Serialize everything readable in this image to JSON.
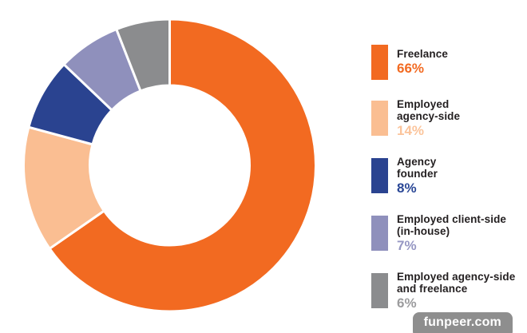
{
  "chart_data": {
    "type": "pie",
    "subtype": "donut",
    "title": "",
    "categories": [
      "Freelance",
      "Employed agency-side",
      "Agency founder",
      "Employed client-side (in-house)",
      "Employed agency-side and freelance"
    ],
    "values": [
      66,
      14,
      8,
      7,
      6
    ],
    "unit": "%",
    "colors": [
      "#F26A21",
      "#FABE92",
      "#2A4390",
      "#8F90BC",
      "#8B8C8E"
    ],
    "start_angle_deg": 0,
    "direction": "clockwise",
    "inner_radius_ratio": 0.55,
    "separator_color": "#FFFFFF",
    "legend_position": "right"
  },
  "legend": {
    "items": [
      {
        "key": "freelance",
        "label": "Freelance",
        "pct": "66%",
        "color": "#F26A21",
        "pct_color": "#F26A21"
      },
      {
        "key": "employed-agency-side",
        "label": "Employed\nagency-side",
        "pct": "14%",
        "color": "#FABE92",
        "pct_color": "#FBC49B"
      },
      {
        "key": "agency-founder",
        "label": "Agency\nfounder",
        "pct": "8%",
        "color": "#2A4390",
        "pct_color": "#2A4796"
      },
      {
        "key": "employed-client-side",
        "label": "Employed client-side\n(in-house)",
        "pct": "7%",
        "color": "#8F90BC",
        "pct_color": "#9697C3"
      },
      {
        "key": "employed-agency-side-and-freelance",
        "label": "Employed agency-side\nand freelance",
        "pct": "6%",
        "color": "#8B8C8E",
        "pct_color": "#9C9C9E"
      }
    ]
  },
  "watermark": {
    "text": "funpeer.com",
    "bg": "#8E8E8E",
    "text_color": "#FFFFFF"
  }
}
